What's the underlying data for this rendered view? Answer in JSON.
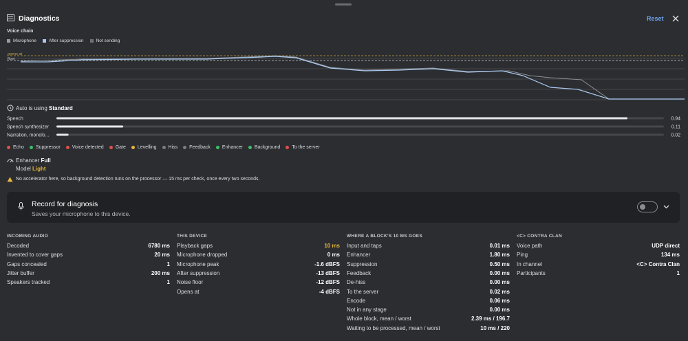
{
  "header": {
    "title": "Diagnostics",
    "reset": "Reset"
  },
  "voice_chain": {
    "title": "Voice chain",
    "legend": [
      {
        "label": "Microphone",
        "color": "#9a9a9a"
      },
      {
        "label": "After suppression",
        "color": "#a9c9ee"
      },
      {
        "label": "Not sending",
        "color": "#6e7075"
      }
    ],
    "opens_at": "opens at",
    "floor": "floor"
  },
  "auto": {
    "prefix": "Auto is using",
    "mode": "Standard"
  },
  "classes": [
    {
      "label": "Speech",
      "value": 0.94
    },
    {
      "label": "Speech synthesizer",
      "value": 0.11
    },
    {
      "label": "Narration, monolo...",
      "value": 0.02
    }
  ],
  "status": [
    {
      "label": "Echo",
      "color": "#e0504a"
    },
    {
      "label": "Suppressor",
      "color": "#3fbf6a"
    },
    {
      "label": "Voice detected",
      "color": "#e0504a"
    },
    {
      "label": "Gate",
      "color": "#e0504a"
    },
    {
      "label": "Levelling",
      "color": "#e8b53a"
    },
    {
      "label": "Hiss",
      "color": "#7a7c80"
    },
    {
      "label": "Feedback",
      "color": "#7a7c80"
    },
    {
      "label": "Enhancer",
      "color": "#3fbf6a"
    },
    {
      "label": "Background",
      "color": "#3fbf6a"
    },
    {
      "label": "To the server",
      "color": "#e0504a"
    }
  ],
  "enhancer": {
    "label": "Enhancer",
    "value": "Full",
    "model_label": "Model",
    "model": "Light",
    "model_color": "#e8b53a"
  },
  "warning": "No accelerator here, so background detection runs on the processor — 15 ms per check, once every two seconds.",
  "record": {
    "title": "Record for diagnosis",
    "subtitle": "Saves your microphone to this device."
  },
  "columns": [
    {
      "title": "INCOMING AUDIO",
      "rows": [
        {
          "label": "Decoded",
          "value": "6780 ms"
        },
        {
          "label": "Invented to cover gaps",
          "value": "20 ms"
        },
        {
          "label": "Gaps concealed",
          "value": "1"
        },
        {
          "label": "Jitter buffer",
          "value": "200 ms"
        },
        {
          "label": "Speakers tracked",
          "value": "1"
        }
      ]
    },
    {
      "title": "THIS DEVICE",
      "rows": [
        {
          "label": "Playback gaps",
          "value": "10 ms",
          "color": "#e8b53a"
        },
        {
          "label": "Microphone dropped",
          "value": "0 ms"
        },
        {
          "label": "Microphone peak",
          "value": "-1.6 dBFS"
        },
        {
          "label": "After suppression",
          "value": "-13 dBFS"
        },
        {
          "label": "Noise floor",
          "value": "-12 dBFS"
        },
        {
          "label": "Opens at",
          "value": "-4 dBFS"
        }
      ]
    },
    {
      "title": "WHERE A BLOCK'S 10 MS GOES",
      "rows": [
        {
          "label": "Input and taps",
          "value": "0.01 ms"
        },
        {
          "label": "Enhancer",
          "value": "1.80 ms"
        },
        {
          "label": "Suppression",
          "value": "0.50 ms"
        },
        {
          "label": "Feedback",
          "value": "0.00 ms"
        },
        {
          "label": "De-hiss",
          "value": "0.00 ms"
        },
        {
          "label": "To the server",
          "value": "0.02 ms"
        },
        {
          "label": "Encode",
          "value": "0.06 ms"
        },
        {
          "label": "Not in any stage",
          "value": "0.00 ms"
        },
        {
          "label": "Whole block, mean / worst",
          "value": "2.39 ms / 196.7"
        },
        {
          "label": "Waiting to be processed, mean / worst",
          "value": "10 ms / 220"
        }
      ]
    },
    {
      "title": "<C> CONTRA CLAN",
      "rows": [
        {
          "label": "Voice path",
          "value": "UDP direct"
        },
        {
          "label": "Ping",
          "value": "134 ms"
        },
        {
          "label": "In channel",
          "value": "<C> Contra Clan"
        },
        {
          "label": "Participants",
          "value": "1"
        }
      ]
    }
  ]
}
